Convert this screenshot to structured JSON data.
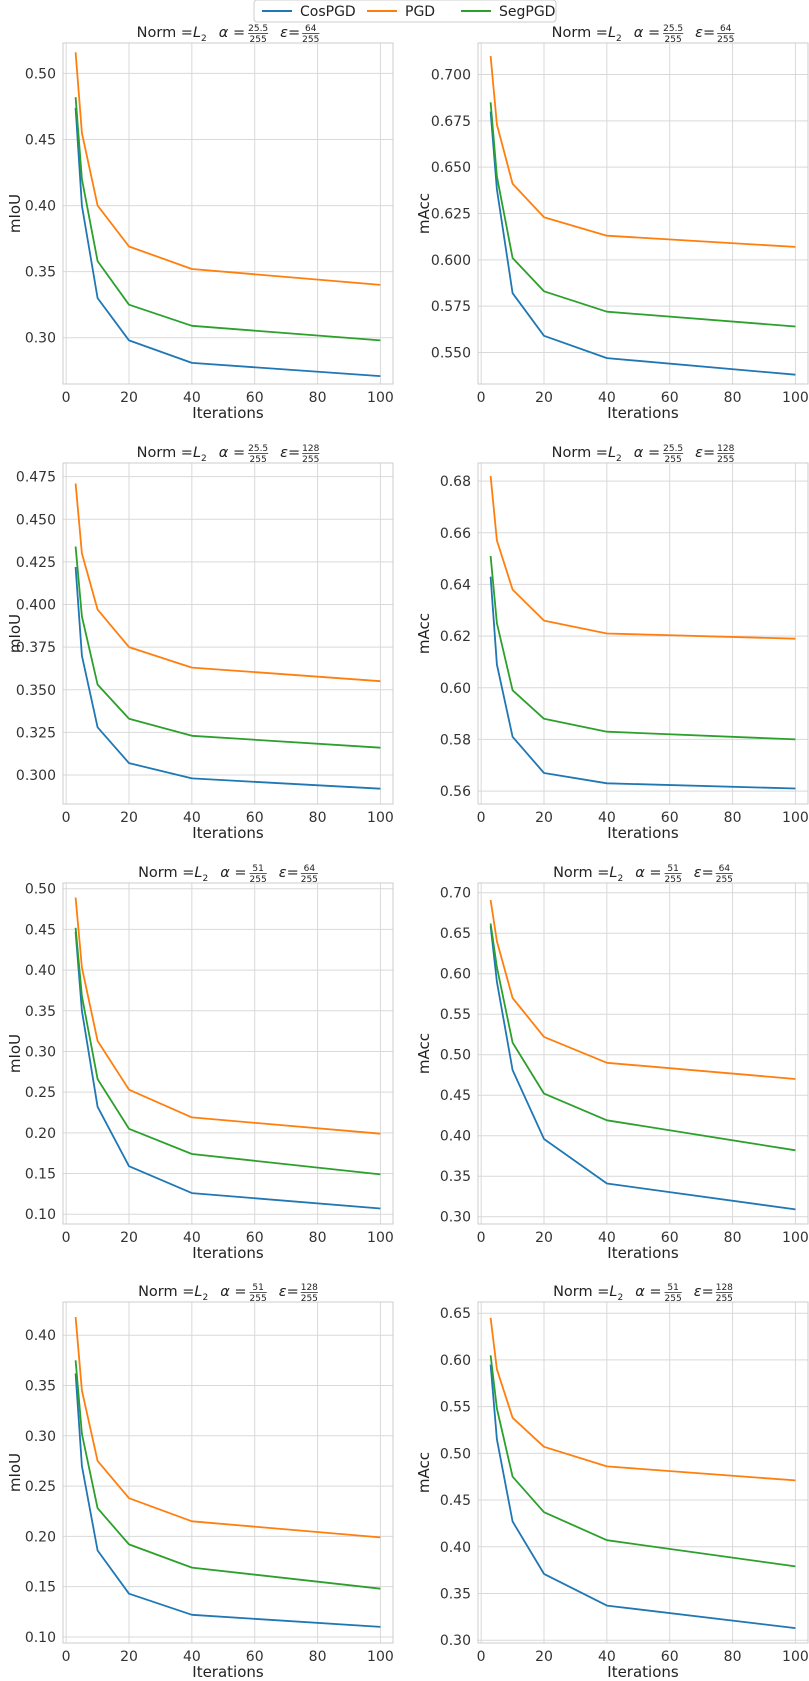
{
  "legend": [
    {
      "name": "CosPGD",
      "color": "#1f77b4"
    },
    {
      "name": "PGD",
      "color": "#ff7f0e"
    },
    {
      "name": "SegPGD",
      "color": "#2ca02c"
    }
  ],
  "chart_data": [
    {
      "type": "line",
      "title": "Norm = L2  α = 25.5/255  ε=64/255",
      "title_parts": {
        "prefix": "Norm = ",
        "norm": "L",
        "norm_sub": "2",
        "alpha_num": "25.5",
        "alpha_den": "255",
        "eps_num": "64",
        "eps_den": "255"
      },
      "xlabel": "Iterations",
      "ylabel": "mIoU",
      "x": [
        3,
        5,
        10,
        20,
        40,
        100
      ],
      "xlim": [
        -1,
        104
      ],
      "ylim": [
        0.265,
        0.523
      ],
      "xticks": [
        0,
        20,
        40,
        60,
        80,
        100
      ],
      "yticks": [
        0.3,
        0.35,
        0.4,
        0.45,
        0.5
      ],
      "ytick_labels": [
        "0.30",
        "0.35",
        "0.40",
        "0.45",
        "0.50"
      ],
      "series": [
        {
          "name": "CosPGD",
          "values": [
            0.474,
            0.4,
            0.33,
            0.298,
            0.281,
            0.271
          ]
        },
        {
          "name": "PGD",
          "values": [
            0.516,
            0.455,
            0.4,
            0.369,
            0.352,
            0.34
          ]
        },
        {
          "name": "SegPGD",
          "values": [
            0.482,
            0.42,
            0.358,
            0.325,
            0.309,
            0.298
          ]
        }
      ]
    },
    {
      "type": "line",
      "title": "Norm = L2  α = 25.5/255  ε=64/255",
      "title_parts": {
        "prefix": "Norm = ",
        "norm": "L",
        "norm_sub": "2",
        "alpha_num": "25.5",
        "alpha_den": "255",
        "eps_num": "64",
        "eps_den": "255"
      },
      "xlabel": "Iterations",
      "ylabel": "mAcc",
      "x": [
        3,
        5,
        10,
        20,
        40,
        100
      ],
      "xlim": [
        -1,
        104
      ],
      "ylim": [
        0.533,
        0.717
      ],
      "xticks": [
        0,
        20,
        40,
        60,
        80,
        100
      ],
      "yticks": [
        0.55,
        0.575,
        0.6,
        0.625,
        0.65,
        0.675,
        0.7
      ],
      "ytick_labels": [
        "0.550",
        "0.575",
        "0.600",
        "0.625",
        "0.650",
        "0.675",
        "0.700"
      ],
      "series": [
        {
          "name": "CosPGD",
          "values": [
            0.68,
            0.638,
            0.582,
            0.559,
            0.547,
            0.538
          ]
        },
        {
          "name": "PGD",
          "values": [
            0.71,
            0.673,
            0.641,
            0.623,
            0.613,
            0.607
          ]
        },
        {
          "name": "SegPGD",
          "values": [
            0.685,
            0.645,
            0.601,
            0.583,
            0.572,
            0.564
          ]
        }
      ]
    },
    {
      "type": "line",
      "title": "Norm = L2  α = 25.5/255  ε=128/255",
      "title_parts": {
        "prefix": "Norm = ",
        "norm": "L",
        "norm_sub": "2",
        "alpha_num": "25.5",
        "alpha_den": "255",
        "eps_num": "128",
        "eps_den": "255"
      },
      "xlabel": "Iterations",
      "ylabel": "mIoU",
      "x": [
        3,
        5,
        10,
        20,
        40,
        100
      ],
      "xlim": [
        -1,
        104
      ],
      "ylim": [
        0.283,
        0.483
      ],
      "xticks": [
        0,
        20,
        40,
        60,
        80,
        100
      ],
      "yticks": [
        0.3,
        0.325,
        0.35,
        0.375,
        0.4,
        0.425,
        0.45,
        0.475
      ],
      "ytick_labels": [
        "0.300",
        "0.325",
        "0.350",
        "0.375",
        "0.400",
        "0.425",
        "0.450",
        "0.475"
      ],
      "series": [
        {
          "name": "CosPGD",
          "values": [
            0.422,
            0.37,
            0.328,
            0.307,
            0.298,
            0.292
          ]
        },
        {
          "name": "PGD",
          "values": [
            0.471,
            0.43,
            0.397,
            0.375,
            0.363,
            0.355
          ]
        },
        {
          "name": "SegPGD",
          "values": [
            0.434,
            0.393,
            0.353,
            0.333,
            0.323,
            0.316
          ]
        }
      ]
    },
    {
      "type": "line",
      "title": "Norm = L2  α = 25.5/255  ε=128/255",
      "title_parts": {
        "prefix": "Norm = ",
        "norm": "L",
        "norm_sub": "2",
        "alpha_num": "25.5",
        "alpha_den": "255",
        "eps_num": "128",
        "eps_den": "255"
      },
      "xlabel": "Iterations",
      "ylabel": "mAcc",
      "x": [
        3,
        5,
        10,
        20,
        40,
        100
      ],
      "xlim": [
        -1,
        104
      ],
      "ylim": [
        0.555,
        0.687
      ],
      "xticks": [
        0,
        20,
        40,
        60,
        80,
        100
      ],
      "yticks": [
        0.56,
        0.58,
        0.6,
        0.62,
        0.64,
        0.66,
        0.68
      ],
      "ytick_labels": [
        "0.56",
        "0.58",
        "0.60",
        "0.62",
        "0.64",
        "0.66",
        "0.68"
      ],
      "series": [
        {
          "name": "CosPGD",
          "values": [
            0.643,
            0.609,
            0.581,
            0.567,
            0.563,
            0.561
          ]
        },
        {
          "name": "PGD",
          "values": [
            0.682,
            0.657,
            0.638,
            0.626,
            0.621,
            0.619
          ]
        },
        {
          "name": "SegPGD",
          "values": [
            0.651,
            0.625,
            0.599,
            0.588,
            0.583,
            0.58
          ]
        }
      ]
    },
    {
      "type": "line",
      "title": "Norm = L2  α = 51/255  ε=64/255",
      "title_parts": {
        "prefix": "Norm = ",
        "norm": "L",
        "norm_sub": "2",
        "alpha_num": "51",
        "alpha_den": "255",
        "eps_num": "64",
        "eps_den": "255"
      },
      "xlabel": "Iterations",
      "ylabel": "mIoU",
      "x": [
        3,
        5,
        10,
        20,
        40,
        100
      ],
      "xlim": [
        -1,
        104
      ],
      "ylim": [
        0.088,
        0.507
      ],
      "xticks": [
        0,
        20,
        40,
        60,
        80,
        100
      ],
      "yticks": [
        0.1,
        0.15,
        0.2,
        0.25,
        0.3,
        0.35,
        0.4,
        0.45,
        0.5
      ],
      "ytick_labels": [
        "0.10",
        "0.15",
        "0.20",
        "0.25",
        "0.30",
        "0.35",
        "0.40",
        "0.45",
        "0.50"
      ],
      "series": [
        {
          "name": "CosPGD",
          "values": [
            0.447,
            0.35,
            0.232,
            0.159,
            0.126,
            0.107
          ]
        },
        {
          "name": "PGD",
          "values": [
            0.489,
            0.403,
            0.313,
            0.253,
            0.219,
            0.199
          ]
        },
        {
          "name": "SegPGD",
          "values": [
            0.452,
            0.368,
            0.266,
            0.205,
            0.174,
            0.149
          ]
        }
      ]
    },
    {
      "type": "line",
      "title": "Norm = L2  α = 51/255  ε=64/255",
      "title_parts": {
        "prefix": "Norm = ",
        "norm": "L",
        "norm_sub": "2",
        "alpha_num": "51",
        "alpha_den": "255",
        "eps_num": "64",
        "eps_den": "255"
      },
      "xlabel": "Iterations",
      "ylabel": "mAcc",
      "x": [
        3,
        5,
        10,
        20,
        40,
        100
      ],
      "xlim": [
        -1,
        104
      ],
      "ylim": [
        0.291,
        0.712
      ],
      "xticks": [
        0,
        20,
        40,
        60,
        80,
        100
      ],
      "yticks": [
        0.3,
        0.35,
        0.4,
        0.45,
        0.5,
        0.55,
        0.6,
        0.65,
        0.7
      ],
      "ytick_labels": [
        "0.30",
        "0.35",
        "0.40",
        "0.45",
        "0.50",
        "0.55",
        "0.60",
        "0.65",
        "0.70"
      ],
      "series": [
        {
          "name": "CosPGD",
          "values": [
            0.659,
            0.59,
            0.481,
            0.396,
            0.341,
            0.309
          ]
        },
        {
          "name": "PGD",
          "values": [
            0.691,
            0.64,
            0.57,
            0.522,
            0.49,
            0.47
          ]
        },
        {
          "name": "SegPGD",
          "values": [
            0.662,
            0.608,
            0.515,
            0.452,
            0.419,
            0.382
          ]
        }
      ]
    },
    {
      "type": "line",
      "title": "Norm = L2  α = 51/255  ε=128/255",
      "title_parts": {
        "prefix": "Norm = ",
        "norm": "L",
        "norm_sub": "2",
        "alpha_num": "51",
        "alpha_den": "255",
        "eps_num": "128",
        "eps_den": "255"
      },
      "xlabel": "Iterations",
      "ylabel": "mIoU",
      "x": [
        3,
        5,
        10,
        20,
        40,
        100
      ],
      "xlim": [
        -1,
        104
      ],
      "ylim": [
        0.094,
        0.433
      ],
      "xticks": [
        0,
        20,
        40,
        60,
        80,
        100
      ],
      "yticks": [
        0.1,
        0.15,
        0.2,
        0.25,
        0.3,
        0.35,
        0.4
      ],
      "ytick_labels": [
        "0.10",
        "0.15",
        "0.20",
        "0.25",
        "0.30",
        "0.35",
        "0.40"
      ],
      "series": [
        {
          "name": "CosPGD",
          "values": [
            0.362,
            0.27,
            0.186,
            0.143,
            0.122,
            0.11
          ]
        },
        {
          "name": "PGD",
          "values": [
            0.418,
            0.345,
            0.275,
            0.238,
            0.215,
            0.199
          ]
        },
        {
          "name": "SegPGD",
          "values": [
            0.375,
            0.302,
            0.228,
            0.192,
            0.169,
            0.148
          ]
        }
      ]
    },
    {
      "type": "line",
      "title": "Norm = L2  α = 51/255  ε=128/255",
      "title_parts": {
        "prefix": "Norm = ",
        "norm": "L",
        "norm_sub": "2",
        "alpha_num": "51",
        "alpha_den": "255",
        "eps_num": "128",
        "eps_den": "255"
      },
      "xlabel": "Iterations",
      "ylabel": "mAcc",
      "x": [
        3,
        5,
        10,
        20,
        40,
        100
      ],
      "xlim": [
        -1,
        104
      ],
      "ylim": [
        0.297,
        0.662
      ],
      "xticks": [
        0,
        20,
        40,
        60,
        80,
        100
      ],
      "yticks": [
        0.3,
        0.35,
        0.4,
        0.45,
        0.5,
        0.55,
        0.6,
        0.65
      ],
      "ytick_labels": [
        "0.30",
        "0.35",
        "0.40",
        "0.45",
        "0.50",
        "0.55",
        "0.60",
        "0.65"
      ],
      "series": [
        {
          "name": "CosPGD",
          "values": [
            0.595,
            0.515,
            0.427,
            0.371,
            0.337,
            0.313
          ]
        },
        {
          "name": "PGD",
          "values": [
            0.645,
            0.59,
            0.538,
            0.507,
            0.486,
            0.471
          ]
        },
        {
          "name": "SegPGD",
          "values": [
            0.605,
            0.548,
            0.475,
            0.437,
            0.407,
            0.379
          ]
        }
      ]
    }
  ]
}
